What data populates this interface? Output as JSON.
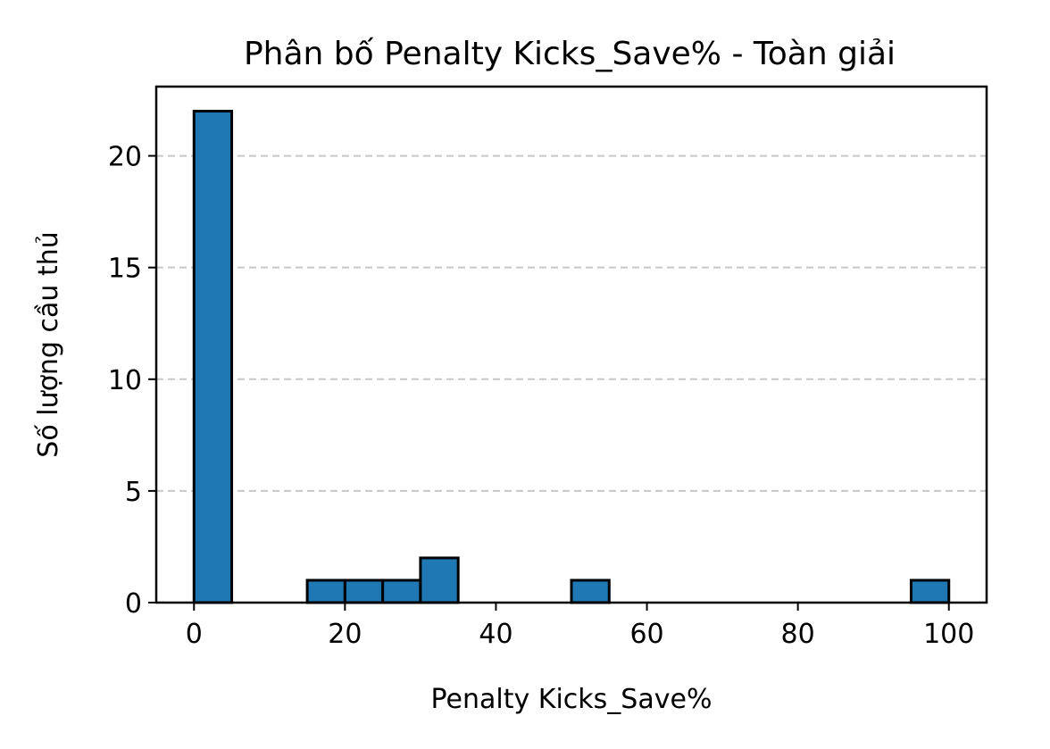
{
  "chart_data": {
    "type": "bar",
    "title": "Phân bố Penalty Kicks_Save% - Toàn giải",
    "xlabel": "Penalty Kicks_Save%",
    "ylabel": "Số lượng cầu thủ",
    "bin_width": 5,
    "bins": [
      {
        "x0": 0,
        "x1": 5,
        "count": 22
      },
      {
        "x0": 5,
        "x1": 10,
        "count": 0
      },
      {
        "x0": 10,
        "x1": 15,
        "count": 0
      },
      {
        "x0": 15,
        "x1": 20,
        "count": 1
      },
      {
        "x0": 20,
        "x1": 25,
        "count": 1
      },
      {
        "x0": 25,
        "x1": 30,
        "count": 1
      },
      {
        "x0": 30,
        "x1": 35,
        "count": 2
      },
      {
        "x0": 35,
        "x1": 40,
        "count": 0
      },
      {
        "x0": 40,
        "x1": 45,
        "count": 0
      },
      {
        "x0": 45,
        "x1": 50,
        "count": 0
      },
      {
        "x0": 50,
        "x1": 55,
        "count": 1
      },
      {
        "x0": 55,
        "x1": 60,
        "count": 0
      },
      {
        "x0": 60,
        "x1": 65,
        "count": 0
      },
      {
        "x0": 65,
        "x1": 70,
        "count": 0
      },
      {
        "x0": 70,
        "x1": 75,
        "count": 0
      },
      {
        "x0": 75,
        "x1": 80,
        "count": 0
      },
      {
        "x0": 80,
        "x1": 85,
        "count": 0
      },
      {
        "x0": 85,
        "x1": 90,
        "count": 0
      },
      {
        "x0": 90,
        "x1": 95,
        "count": 0
      },
      {
        "x0": 95,
        "x1": 100,
        "count": 1
      }
    ],
    "xlim": [
      -5,
      105
    ],
    "ylim": [
      0,
      23.1
    ],
    "xticks": [
      0,
      20,
      40,
      60,
      80,
      100
    ],
    "yticks": [
      0,
      5,
      10,
      15,
      20
    ],
    "grid": "y-dashed",
    "bar_color": "#1f77b4",
    "edge_color": "#000000",
    "grid_color": "#c8c8c8"
  }
}
